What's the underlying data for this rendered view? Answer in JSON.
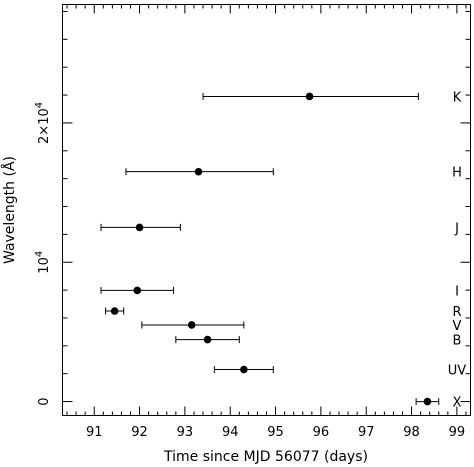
{
  "chart_data": {
    "type": "scatter",
    "title": "",
    "xlabel": "Time since MJD 56077 (days)",
    "ylabel": "Wavelength (Å)",
    "xlim": [
      90.3,
      99.3
    ],
    "ylim": [
      -1000,
      28500
    ],
    "x_ticks": [
      {
        "value": 91,
        "label": "91"
      },
      {
        "value": 92,
        "label": "92"
      },
      {
        "value": 93,
        "label": "93"
      },
      {
        "value": 94,
        "label": "94"
      },
      {
        "value": 95,
        "label": "95"
      },
      {
        "value": 96,
        "label": "96"
      },
      {
        "value": 97,
        "label": "97"
      },
      {
        "value": 98,
        "label": "98"
      },
      {
        "value": 99,
        "label": "99"
      }
    ],
    "y_ticks": [
      {
        "value": 0,
        "label": "0",
        "mantissa": "",
        "exponent": ""
      },
      {
        "value": 10000,
        "label": "",
        "mantissa": "10",
        "exponent": "4"
      },
      {
        "value": 20000,
        "label": "",
        "mantissa": "2×10",
        "exponent": "4"
      }
    ],
    "y_minor_step": 2000,
    "x_minor_step": 0.2,
    "grid": false,
    "points": [
      {
        "band": "X",
        "x": 98.35,
        "xerr_low": 0.25,
        "xerr_high": 0.25,
        "y": 0
      },
      {
        "band": "UV",
        "x": 94.3,
        "xerr_low": 0.65,
        "xerr_high": 0.65,
        "y": 2300
      },
      {
        "band": "B",
        "x": 93.5,
        "xerr_low": 0.7,
        "xerr_high": 0.7,
        "y": 4450
      },
      {
        "band": "V",
        "x": 93.15,
        "xerr_low": 1.1,
        "xerr_high": 1.15,
        "y": 5500
      },
      {
        "band": "R",
        "x": 91.45,
        "xerr_low": 0.2,
        "xerr_high": 0.2,
        "y": 6500
      },
      {
        "band": "I",
        "x": 91.95,
        "xerr_low": 0.8,
        "xerr_high": 0.8,
        "y": 7980
      },
      {
        "band": "J",
        "x": 92.0,
        "xerr_low": 0.85,
        "xerr_high": 0.9,
        "y": 12500
      },
      {
        "band": "H",
        "x": 93.3,
        "xerr_low": 1.6,
        "xerr_high": 1.65,
        "y": 16500
      },
      {
        "band": "K",
        "x": 95.75,
        "xerr_low": 2.35,
        "xerr_high": 2.4,
        "y": 21900
      }
    ]
  }
}
